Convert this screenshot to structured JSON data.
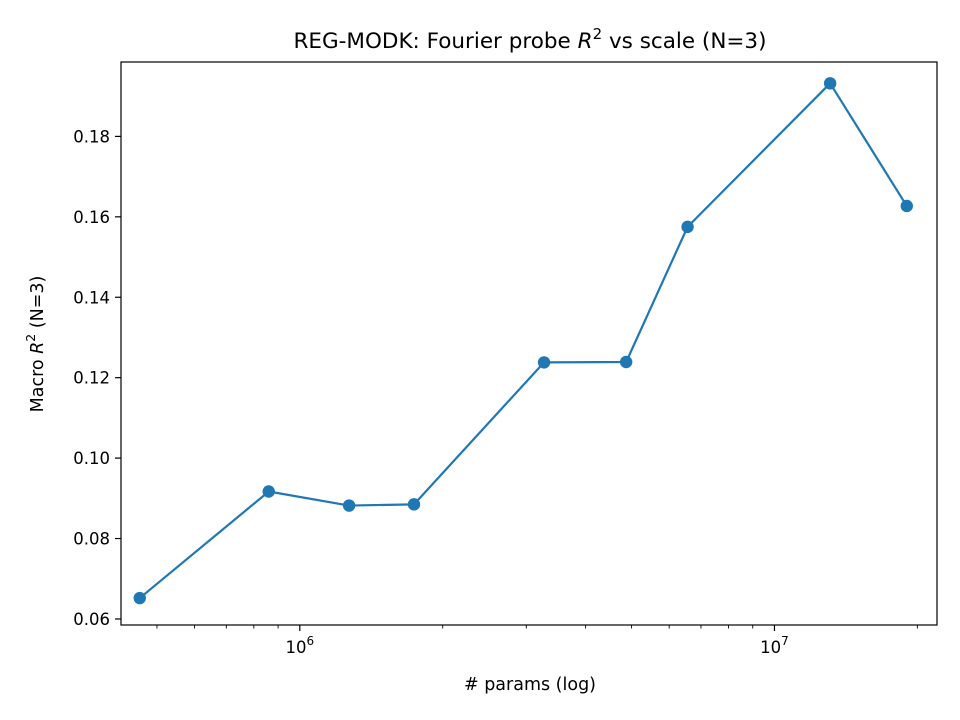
{
  "chart_data": {
    "type": "line",
    "title": {
      "prefix": "REG-MODK: Fourier probe ",
      "var": "R",
      "sup": "2",
      "suffix": " vs scale (N=3)"
    },
    "xlabel": "# params (log)",
    "ylabel": {
      "prefix": "Macro ",
      "var": "R",
      "sup": "2",
      "suffix": " (N=3)"
    },
    "x_scale": "log",
    "xlim": [
      420000,
      22000000
    ],
    "ylim": [
      0.0585,
      0.1985
    ],
    "x_ticks": [
      {
        "value": 1000000,
        "base": "10",
        "exp": "6"
      },
      {
        "value": 10000000,
        "base": "10",
        "exp": "7"
      }
    ],
    "y_ticks": [
      {
        "value": 0.06,
        "label": "0.06"
      },
      {
        "value": 0.08,
        "label": "0.08"
      },
      {
        "value": 0.1,
        "label": "0.10"
      },
      {
        "value": 0.12,
        "label": "0.12"
      },
      {
        "value": 0.14,
        "label": "0.14"
      },
      {
        "value": 0.16,
        "label": "0.16"
      },
      {
        "value": 0.18,
        "label": "0.18"
      }
    ],
    "grid": false,
    "series": [
      {
        "color": "#1f77b4",
        "marker": "circle",
        "x": [
          460000,
          860000,
          1270000,
          1740000,
          3270000,
          4870000,
          6560000,
          13100000,
          19000000
        ],
        "y": [
          0.0652,
          0.0917,
          0.0882,
          0.0885,
          0.1238,
          0.1239,
          0.1575,
          0.1932,
          0.1627
        ]
      }
    ]
  }
}
